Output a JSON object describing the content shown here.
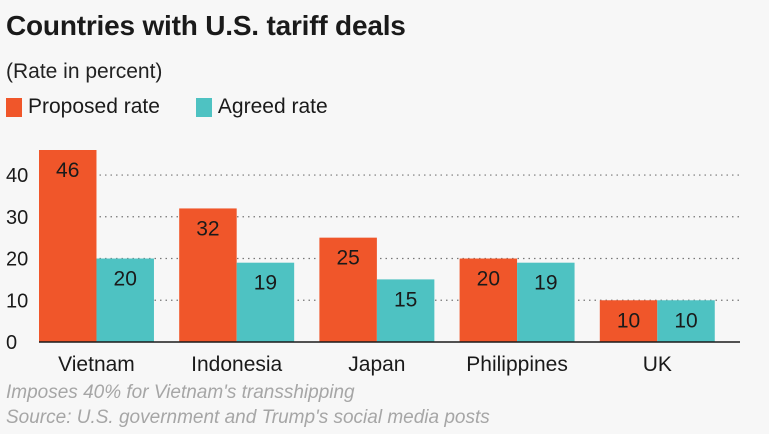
{
  "title": "Countries with U.S. tariff deals",
  "subtitle": "(Rate in percent)",
  "notes": [
    "Imposes 40% for Vietnam's transshipping",
    "Source: U.S. government and Trump's social media posts"
  ],
  "colors": {
    "proposed": "#f0562a",
    "agreed": "#4ec2c2",
    "background": "#f7f7f7",
    "grid": "#777777"
  },
  "chart_data": {
    "type": "bar",
    "title": "Countries with U.S. tariff deals",
    "subtitle": "(Rate in percent)",
    "categories": [
      "Vietnam",
      "Indonesia",
      "Japan",
      "Philippines",
      "UK"
    ],
    "series": [
      {
        "name": "Proposed rate",
        "values": [
          46,
          32,
          25,
          20,
          10
        ]
      },
      {
        "name": "Agreed rate",
        "values": [
          20,
          19,
          15,
          19,
          10
        ]
      }
    ],
    "yticks": [
      0,
      10,
      20,
      30,
      40
    ],
    "ylim": [
      0,
      46
    ],
    "grid": true,
    "grid_style": "dotted",
    "legend": "top-left",
    "xlabel": "",
    "ylabel": ""
  }
}
